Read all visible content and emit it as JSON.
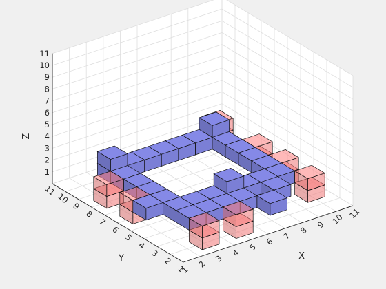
{
  "chart_data": {
    "type": "3d-voxel",
    "xlabel": "X",
    "ylabel": "Y",
    "zlabel": "Z",
    "xlim": [
      1,
      11
    ],
    "ylim": [
      1,
      11
    ],
    "zlim": [
      0,
      11
    ],
    "xticks": [
      "1",
      "2",
      "3",
      "4",
      "5",
      "6",
      "7",
      "8",
      "9",
      "10",
      "11"
    ],
    "yticks": [
      "1",
      "2",
      "3",
      "4",
      "5",
      "6",
      "7",
      "8",
      "9",
      "10",
      "11"
    ],
    "zticks": [
      "1",
      "2",
      "3",
      "4",
      "5",
      "6",
      "7",
      "8",
      "9",
      "10",
      "11"
    ],
    "grid": true,
    "series": [
      {
        "color": "#7b7fd6",
        "opacity": 1.0,
        "voxels": [
          [
            3,
            4,
            2
          ],
          [
            3,
            5,
            2
          ],
          [
            3,
            6,
            2
          ],
          [
            3,
            7,
            2
          ],
          [
            3,
            8,
            2
          ],
          [
            3,
            9,
            2
          ],
          [
            3,
            9,
            3
          ],
          [
            4,
            4,
            2
          ],
          [
            5,
            4,
            2
          ],
          [
            6,
            4,
            2
          ],
          [
            7,
            4,
            2
          ],
          [
            8,
            4,
            2
          ],
          [
            9,
            4,
            2
          ],
          [
            4,
            9,
            2
          ],
          [
            5,
            9,
            2
          ],
          [
            6,
            9,
            2
          ],
          [
            7,
            9,
            2
          ],
          [
            8,
            9,
            2
          ],
          [
            9,
            5,
            2
          ],
          [
            9,
            6,
            2
          ],
          [
            9,
            7,
            2
          ],
          [
            9,
            8,
            2
          ],
          [
            9,
            9,
            2
          ],
          [
            9,
            9,
            3
          ],
          [
            8,
            3,
            2
          ],
          [
            7,
            2,
            2
          ],
          [
            6,
            3,
            2
          ],
          [
            5,
            3,
            2
          ],
          [
            2,
            5,
            2
          ],
          [
            3,
            3,
            2
          ],
          [
            4,
            3,
            2
          ],
          [
            6,
            4,
            3
          ]
        ]
      },
      {
        "color": "#f07676",
        "opacity": 0.55,
        "voxels": [
          [
            10,
            10,
            1
          ],
          [
            10,
            10,
            2
          ],
          [
            10,
            7,
            1
          ],
          [
            10,
            7,
            2
          ],
          [
            10,
            5,
            1
          ],
          [
            10,
            5,
            2
          ],
          [
            10,
            3,
            1
          ],
          [
            10,
            3,
            2
          ],
          [
            3,
            2,
            1
          ],
          [
            3,
            2,
            2
          ],
          [
            5,
            2,
            1
          ],
          [
            5,
            2,
            2
          ],
          [
            2,
            6,
            1
          ],
          [
            2,
            6,
            2
          ],
          [
            2,
            8,
            1
          ],
          [
            2,
            8,
            2
          ]
        ]
      }
    ]
  }
}
